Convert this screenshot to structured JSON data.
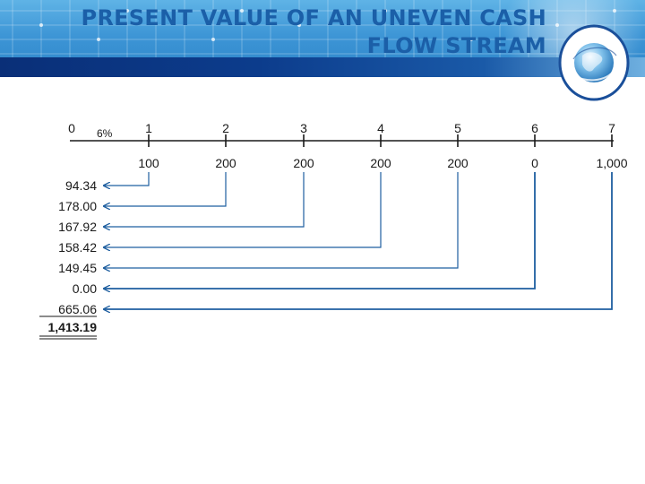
{
  "title": {
    "line1": "PRESENT VALUE OF AN UNEVEN CASH",
    "line2": "FLOW STREAM"
  },
  "logo": {
    "icon": "globe-icon"
  },
  "diagram": {
    "rate_label": "6%",
    "periods": [
      "0",
      "1",
      "2",
      "3",
      "4",
      "5",
      "6",
      "7"
    ],
    "cash_flows": [
      "",
      "100",
      "200",
      "200",
      "200",
      "200",
      "0",
      "1,000"
    ],
    "present_values": [
      "94.34",
      "178.00",
      "167.92",
      "158.42",
      "149.45",
      "0.00",
      "665.06"
    ],
    "total": "1,413.19"
  },
  "colors": {
    "title": "#1b5fa8",
    "arrow": "#1f5fa0",
    "text": "#1a1a1a",
    "header_dark": "#0c3c8c",
    "header_light": "#5fb3e6"
  }
}
